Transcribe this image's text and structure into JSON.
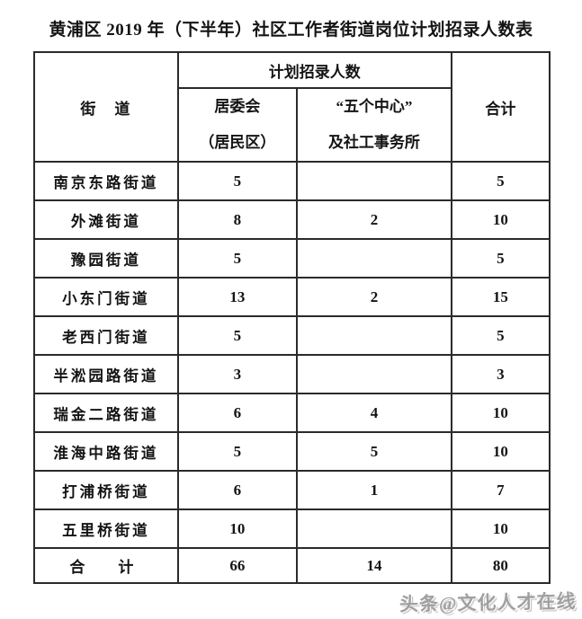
{
  "title": "黄浦区 2019 年（下半年）社区工作者街道岗位计划招录人数表",
  "table": {
    "header": {
      "street": "街　道",
      "plan_group": "计划招录人数",
      "juweihui_line1": "居委会",
      "juweihui_line2": "（居民区）",
      "centers_line1": "“五个中心”",
      "centers_line2": "及社工事务所",
      "total": "合计"
    },
    "rows": [
      {
        "street": "南京东路街道",
        "juweihui": "5",
        "centers": "",
        "total": "5"
      },
      {
        "street": "外滩街道",
        "juweihui": "8",
        "centers": "2",
        "total": "10"
      },
      {
        "street": "豫园街道",
        "juweihui": "5",
        "centers": "",
        "total": "5"
      },
      {
        "street": "小东门街道",
        "juweihui": "13",
        "centers": "2",
        "total": "15"
      },
      {
        "street": "老西门街道",
        "juweihui": "5",
        "centers": "",
        "total": "5"
      },
      {
        "street": "半淞园路街道",
        "juweihui": "3",
        "centers": "",
        "total": "3"
      },
      {
        "street": "瑞金二路街道",
        "juweihui": "6",
        "centers": "4",
        "total": "10"
      },
      {
        "street": "淮海中路街道",
        "juweihui": "5",
        "centers": "5",
        "total": "10"
      },
      {
        "street": "打浦桥街道",
        "juweihui": "6",
        "centers": "1",
        "total": "7"
      },
      {
        "street": "五里桥街道",
        "juweihui": "10",
        "centers": "",
        "total": "10"
      }
    ],
    "footer": {
      "label": "合　计",
      "juweihui": "66",
      "centers": "14",
      "total": "80"
    }
  },
  "watermark": "头条@文化人才在线",
  "colors": {
    "table_border": "#2a2a2a",
    "watermark_gray": "#a0a0a0",
    "text": "#141414",
    "background": "#ffffff"
  }
}
